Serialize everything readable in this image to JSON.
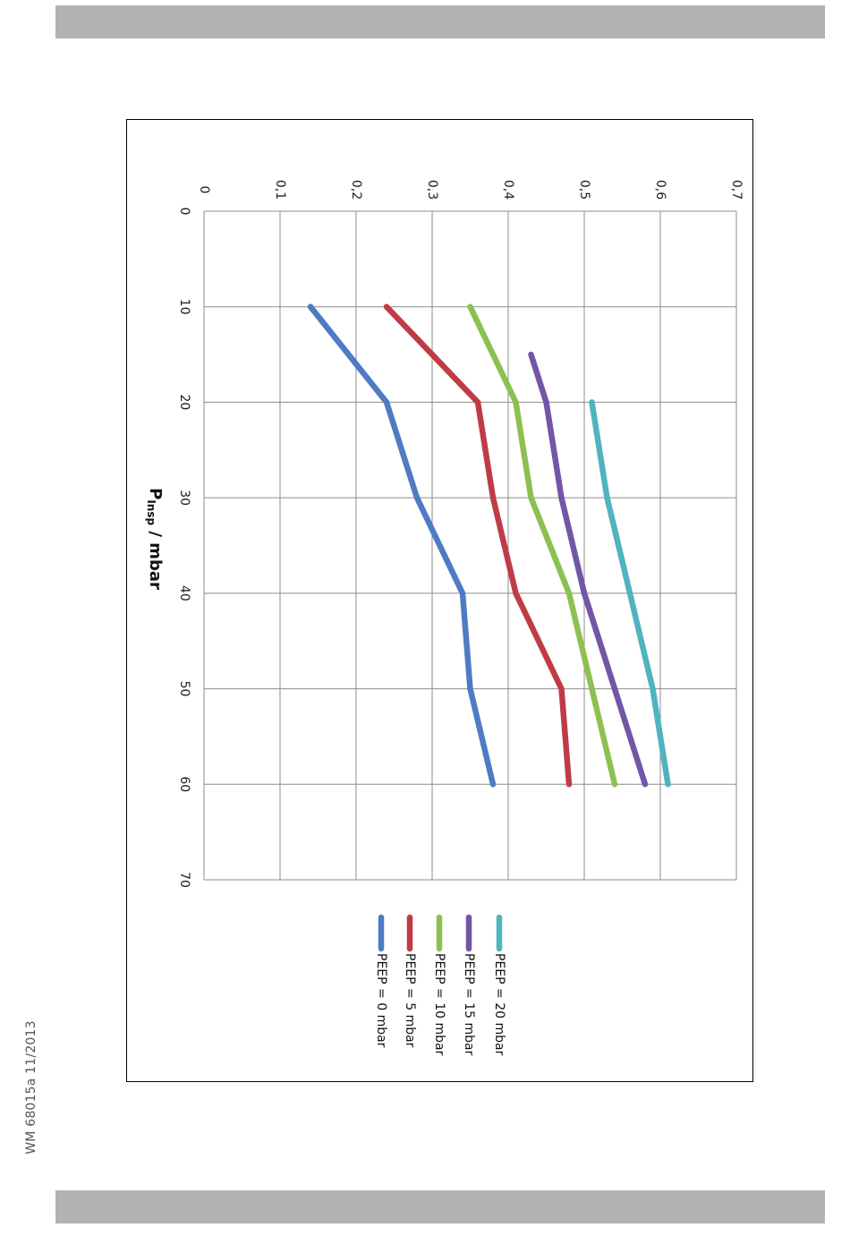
{
  "page": {
    "doc_code": "WM 68015a 11/2013"
  },
  "chart_data": {
    "type": "line",
    "title": "",
    "xlabel": {
      "main": "P",
      "sub": "Insp",
      "unit": " / mbar"
    },
    "ylabel": "",
    "xlim": [
      0,
      70
    ],
    "ylim": [
      0,
      0.7
    ],
    "x_ticks": [
      0,
      10,
      20,
      30,
      40,
      50,
      60,
      70
    ],
    "x_tick_labels": [
      "0",
      "10",
      "20",
      "30",
      "40",
      "50",
      "60",
      "70"
    ],
    "y_ticks": [
      0,
      0.1,
      0.2,
      0.3,
      0.4,
      0.5,
      0.6,
      0.7
    ],
    "y_tick_labels": [
      "0",
      "0,1",
      "0,2",
      "0,3",
      "0,4",
      "0,5",
      "0,6",
      "0,7"
    ],
    "grid": true,
    "orientation": "rotated 90° clockwise",
    "legend_position": "bottom",
    "series": [
      {
        "name": "PEEP = 0 mbar",
        "color": "#4f7bc4",
        "x": [
          10,
          20,
          30,
          40,
          50,
          60
        ],
        "values": [
          0.14,
          0.24,
          0.28,
          0.34,
          0.35,
          0.38
        ]
      },
      {
        "name": "PEEP = 5 mbar",
        "color": "#bf3c47",
        "x": [
          10,
          20,
          30,
          40,
          50,
          60
        ],
        "values": [
          0.24,
          0.36,
          0.38,
          0.41,
          0.47,
          0.48
        ]
      },
      {
        "name": "PEEP = 10 mbar",
        "color": "#8cc152",
        "x": [
          10,
          20,
          30,
          40,
          50,
          60
        ],
        "values": [
          0.35,
          0.41,
          0.43,
          0.48,
          0.51,
          0.54
        ]
      },
      {
        "name": "PEEP = 15 mbar",
        "color": "#7455a6",
        "x": [
          15,
          20,
          30,
          40,
          50,
          60
        ],
        "values": [
          0.43,
          0.45,
          0.47,
          0.5,
          0.54,
          0.58
        ]
      },
      {
        "name": "PEEP = 20 mbar",
        "color": "#4fb3c0",
        "x": [
          20,
          30,
          40,
          50,
          60
        ],
        "values": [
          0.51,
          0.53,
          0.56,
          0.59,
          0.61
        ]
      }
    ]
  }
}
